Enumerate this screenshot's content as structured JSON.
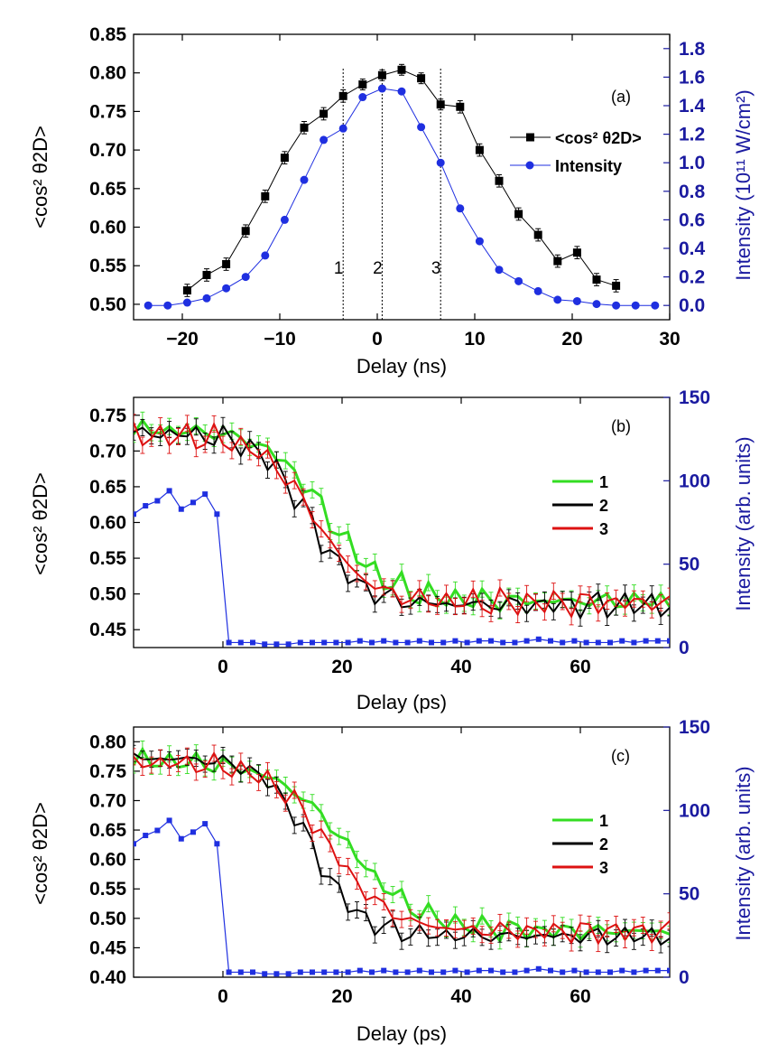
{
  "chart_data": [
    {
      "id": "a",
      "type": "scatter",
      "panel_label": "(a)",
      "xlabel": "Delay (ns)",
      "ylabel": "<cos² θ2D>",
      "ylabel_right": "Intensity (10¹¹ W/cm²)",
      "xlim": [
        -25,
        30
      ],
      "ylim": [
        0.48,
        0.85
      ],
      "ylim_right": [
        -0.1,
        1.9
      ],
      "xticks": [
        -20,
        -10,
        0,
        10,
        20,
        30
      ],
      "xtick_labels": [
        "−20",
        "−10",
        "0",
        "10",
        "20",
        "30"
      ],
      "yticks": [
        0.5,
        0.55,
        0.6,
        0.65,
        0.7,
        0.75,
        0.8,
        0.85
      ],
      "ytick_labels": [
        "0.50",
        "0.55",
        "0.60",
        "0.65",
        "0.70",
        "0.75",
        "0.80",
        "0.85"
      ],
      "yticks_right": [
        0.0,
        0.2,
        0.4,
        0.6,
        0.8,
        1.0,
        1.2,
        1.4,
        1.6,
        1.8
      ],
      "ytick_labels_right": [
        "0.0",
        "0.2",
        "0.4",
        "0.6",
        "0.8",
        "1.0",
        "1.2",
        "1.4",
        "1.6",
        "1.8"
      ],
      "legend_position": "right",
      "markers": [
        {
          "label": "1",
          "x": -3.5
        },
        {
          "label": "2",
          "x": 0.5
        },
        {
          "label": "3",
          "x": 6.5
        }
      ],
      "series": [
        {
          "name": "<cos² θ2D>",
          "axis": "left",
          "color": "#000000",
          "marker": "square",
          "x": [
            -19.5,
            -17.5,
            -15.5,
            -13.5,
            -11.5,
            -9.5,
            -7.5,
            -5.5,
            -3.5,
            -1.5,
            0.5,
            2.5,
            4.5,
            6.5,
            8.5,
            10.5,
            12.5,
            14.5,
            16.5,
            18.5,
            20.5,
            22.5,
            24.5
          ],
          "y": [
            0.518,
            0.538,
            0.552,
            0.595,
            0.64,
            0.69,
            0.729,
            0.747,
            0.77,
            0.785,
            0.797,
            0.804,
            0.793,
            0.759,
            0.756,
            0.7,
            0.66,
            0.617,
            0.59,
            0.556,
            0.567,
            0.532,
            0.524
          ],
          "err": [
            0.008,
            0.008,
            0.008,
            0.008,
            0.008,
            0.008,
            0.008,
            0.008,
            0.008,
            0.007,
            0.007,
            0.007,
            0.007,
            0.007,
            0.008,
            0.008,
            0.008,
            0.008,
            0.008,
            0.008,
            0.008,
            0.008,
            0.008
          ]
        },
        {
          "name": "Intensity",
          "axis": "right",
          "color": "#1f2fe0",
          "marker": "circle",
          "x": [
            -23.5,
            -21.5,
            -19.5,
            -17.5,
            -15.5,
            -13.5,
            -11.5,
            -9.5,
            -7.5,
            -5.5,
            -3.5,
            -1.5,
            0.5,
            2.5,
            4.5,
            6.5,
            8.5,
            10.5,
            12.5,
            14.5,
            16.5,
            18.5,
            20.5,
            22.5,
            24.5,
            26.5,
            28.5
          ],
          "y": [
            0.0,
            0.0,
            0.02,
            0.05,
            0.12,
            0.2,
            0.35,
            0.6,
            0.88,
            1.16,
            1.24,
            1.46,
            1.52,
            1.5,
            1.25,
            1.0,
            0.68,
            0.45,
            0.25,
            0.17,
            0.1,
            0.04,
            0.03,
            0.01,
            0.0,
            0.0,
            0.0
          ]
        }
      ]
    },
    {
      "id": "b",
      "type": "line",
      "panel_label": "(b)",
      "xlabel": "Delay (ps)",
      "ylabel": "<cos² θ2D>",
      "ylabel_right": "Intensity (arb. units)",
      "xlim": [
        -15,
        75
      ],
      "ylim": [
        0.425,
        0.775
      ],
      "ylim_right": [
        0,
        150
      ],
      "xticks": [
        0,
        20,
        40,
        60
      ],
      "xtick_labels": [
        "0",
        "20",
        "40",
        "60"
      ],
      "yticks": [
        0.45,
        0.5,
        0.55,
        0.6,
        0.65,
        0.7,
        0.75
      ],
      "ytick_labels": [
        "0.45",
        "0.50",
        "0.55",
        "0.60",
        "0.65",
        "0.70",
        "0.75"
      ],
      "yticks_right": [
        0,
        50,
        100,
        150
      ],
      "ytick_labels_right": [
        "0",
        "50",
        "100",
        "150"
      ],
      "legend_position": "right",
      "curve_params": [
        {
          "name": "1",
          "color": "#33dd22",
          "y0": 0.73,
          "y1": 0.49,
          "xc": 17.5,
          "w": 5.0,
          "phase": 0.0
        },
        {
          "name": "2",
          "color": "#000000",
          "y0": 0.725,
          "y1": 0.485,
          "xc": 14.5,
          "w": 4.2,
          "phase": 1.7
        },
        {
          "name": "3",
          "color": "#dd1111",
          "y0": 0.722,
          "y1": 0.488,
          "xc": 15.5,
          "w": 4.5,
          "phase": 3.3
        }
      ],
      "intensity_series": {
        "name": "Intensity",
        "color": "#1f2fe0",
        "x": [
          -15,
          -13,
          -11,
          -9,
          -7,
          -5,
          -3,
          -1,
          1,
          3,
          5,
          7,
          9,
          11,
          13,
          15,
          17,
          19,
          21,
          23,
          25,
          27,
          29,
          31,
          33,
          35,
          37,
          39,
          41,
          43,
          45,
          47,
          49,
          51,
          53,
          55,
          57,
          59,
          61,
          63,
          65,
          67,
          69,
          71,
          73,
          75
        ],
        "y": [
          80,
          85,
          88,
          94,
          83,
          87,
          92,
          80,
          3,
          3,
          3,
          2,
          2,
          2,
          3,
          3,
          3,
          3,
          3,
          4,
          3,
          4,
          3,
          3,
          4,
          3,
          3,
          4,
          3,
          4,
          4,
          3,
          3,
          4,
          5,
          4,
          3,
          4,
          3,
          3,
          3,
          4,
          3,
          4,
          4,
          4
        ]
      }
    },
    {
      "id": "c",
      "type": "line",
      "panel_label": "(c)",
      "xlabel": "Delay (ps)",
      "ylabel": "<cos² θ2D>",
      "ylabel_right": "Intensity (arb. units)",
      "xlim": [
        -15,
        75
      ],
      "ylim": [
        0.4,
        0.825
      ],
      "ylim_right": [
        0,
        150
      ],
      "xticks": [
        0,
        20,
        40,
        60
      ],
      "xtick_labels": [
        "0",
        "20",
        "40",
        "60"
      ],
      "yticks": [
        0.4,
        0.45,
        0.5,
        0.55,
        0.6,
        0.65,
        0.7,
        0.75,
        0.8
      ],
      "ytick_labels": [
        "0.40",
        "0.45",
        "0.50",
        "0.55",
        "0.60",
        "0.65",
        "0.70",
        "0.75",
        "0.80"
      ],
      "yticks_right": [
        0,
        50,
        100,
        150
      ],
      "ytick_labels_right": [
        "0",
        "50",
        "100",
        "150"
      ],
      "legend_position": "right",
      "curve_params": [
        {
          "name": "1",
          "color": "#33dd22",
          "y0": 0.768,
          "y1": 0.478,
          "xc": 21.0,
          "w": 6.0,
          "phase": 0.5
        },
        {
          "name": "2",
          "color": "#000000",
          "y0": 0.772,
          "y1": 0.47,
          "xc": 15.0,
          "w": 4.0,
          "phase": 2.1
        },
        {
          "name": "3",
          "color": "#dd1111",
          "y0": 0.765,
          "y1": 0.478,
          "xc": 18.0,
          "w": 5.0,
          "phase": 3.9
        }
      ],
      "intensity_series": {
        "name": "Intensity",
        "color": "#1f2fe0",
        "x": [
          -15,
          -13,
          -11,
          -9,
          -7,
          -5,
          -3,
          -1,
          1,
          3,
          5,
          7,
          9,
          11,
          13,
          15,
          17,
          19,
          21,
          23,
          25,
          27,
          29,
          31,
          33,
          35,
          37,
          39,
          41,
          43,
          45,
          47,
          49,
          51,
          53,
          55,
          57,
          59,
          61,
          63,
          65,
          67,
          69,
          71,
          73,
          75
        ],
        "y": [
          80,
          85,
          88,
          94,
          83,
          87,
          92,
          80,
          3,
          3,
          3,
          2,
          2,
          2,
          3,
          3,
          3,
          3,
          3,
          4,
          3,
          4,
          3,
          3,
          4,
          3,
          3,
          4,
          3,
          4,
          4,
          3,
          3,
          4,
          5,
          4,
          3,
          4,
          3,
          3,
          3,
          4,
          3,
          4,
          4,
          4
        ]
      }
    }
  ]
}
